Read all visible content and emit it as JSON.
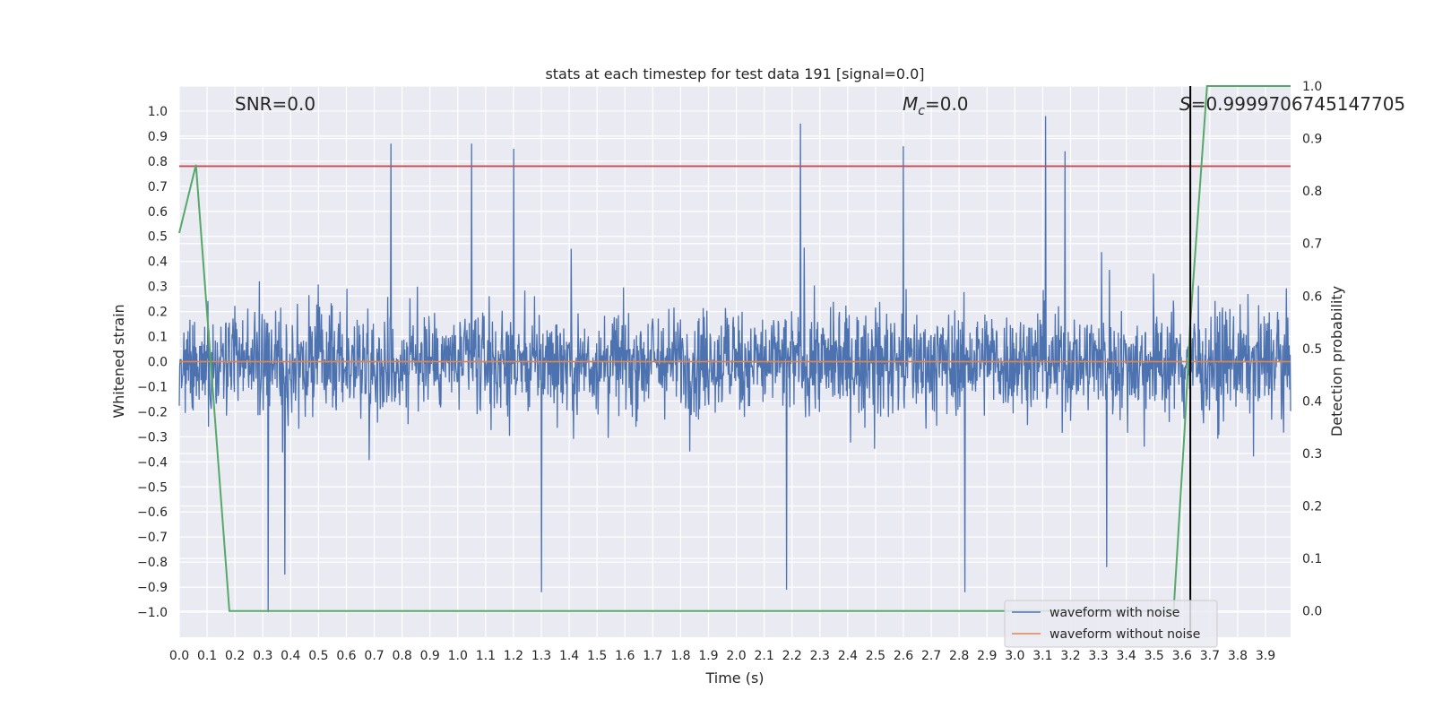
{
  "chart_data": {
    "type": "line",
    "title": "stats at each timestep for test data 191 [signal=0.0]",
    "xlabel": "Time (s)",
    "ylabel": "Whitened strain",
    "y2label": "Detection probability",
    "xlim": [
      0.0,
      3.99
    ],
    "ylim": [
      -1.1,
      1.1
    ],
    "y2lim": [
      -0.05,
      1.0
    ],
    "x_ticks": [
      "0.0",
      "0.1",
      "0.2",
      "0.3",
      "0.4",
      "0.5",
      "0.6",
      "0.7",
      "0.8",
      "0.9",
      "1.0",
      "1.1",
      "1.2",
      "1.3",
      "1.4",
      "1.5",
      "1.6",
      "1.7",
      "1.8",
      "1.9",
      "2.0",
      "2.1",
      "2.2",
      "2.3",
      "2.4",
      "2.5",
      "2.6",
      "2.7",
      "2.8",
      "2.9",
      "3.0",
      "3.1",
      "3.2",
      "3.3",
      "3.4",
      "3.5",
      "3.6",
      "3.7",
      "3.8",
      "3.9"
    ],
    "y_ticks": [
      "1.0",
      "0.9",
      "0.8",
      "0.7",
      "0.6",
      "0.5",
      "0.4",
      "0.3",
      "0.2",
      "0.1",
      "0.0",
      "−0.1",
      "−0.2",
      "−0.3",
      "−0.4",
      "−0.5",
      "−0.6",
      "−0.7",
      "−0.8",
      "−0.9",
      "−1.0"
    ],
    "y2_ticks": [
      "1.0",
      "0.9",
      "0.8",
      "0.7",
      "0.6",
      "0.5",
      "0.4",
      "0.3",
      "0.2",
      "0.1",
      "0.0"
    ],
    "grid": true,
    "legend_position": "lower-right",
    "series": [
      {
        "name": "waveform with noise",
        "color": "#4c72b0",
        "axis": "left",
        "style": "dense noise, mostly within ±0.4 with spikes to about ±0.98",
        "peak_highs": [
          [
            0.76,
            0.87
          ],
          [
            1.05,
            0.87
          ],
          [
            1.2,
            0.85
          ],
          [
            2.23,
            0.95
          ],
          [
            2.6,
            0.86
          ],
          [
            3.11,
            0.98
          ],
          [
            3.18,
            0.84
          ]
        ],
        "peak_lows": [
          [
            0.32,
            -1.0
          ],
          [
            0.38,
            -0.85
          ],
          [
            1.3,
            -0.92
          ],
          [
            2.18,
            -0.91
          ],
          [
            2.82,
            -0.92
          ],
          [
            3.33,
            -0.82
          ]
        ]
      },
      {
        "name": "waveform without noise",
        "color": "#dd8452",
        "axis": "left",
        "x": [
          0.0,
          3.99
        ],
        "y": [
          0.0,
          0.0
        ]
      },
      {
        "color": "#55a868",
        "axis": "right",
        "x": [
          0.0,
          0.06,
          0.18,
          0.25,
          3.0,
          3.57,
          3.61,
          3.63,
          3.69,
          3.99
        ],
        "y": [
          0.72,
          0.85,
          0.0,
          -0.0,
          0.0,
          0.0,
          0.35,
          0.55,
          1.0,
          1.0
        ]
      }
    ],
    "threshold_line": {
      "y": 0.78,
      "axis": "left",
      "color": "#c44e52"
    },
    "marker_line": {
      "x": 3.63,
      "color": "#000000"
    },
    "annotations": {
      "snr": "SNR=0.0",
      "mc_symbol": "M",
      "mc_sub": "c",
      "mc_value": "=0.0",
      "s_symbol": "S",
      "s_value": "=0.9999706745147705"
    }
  }
}
